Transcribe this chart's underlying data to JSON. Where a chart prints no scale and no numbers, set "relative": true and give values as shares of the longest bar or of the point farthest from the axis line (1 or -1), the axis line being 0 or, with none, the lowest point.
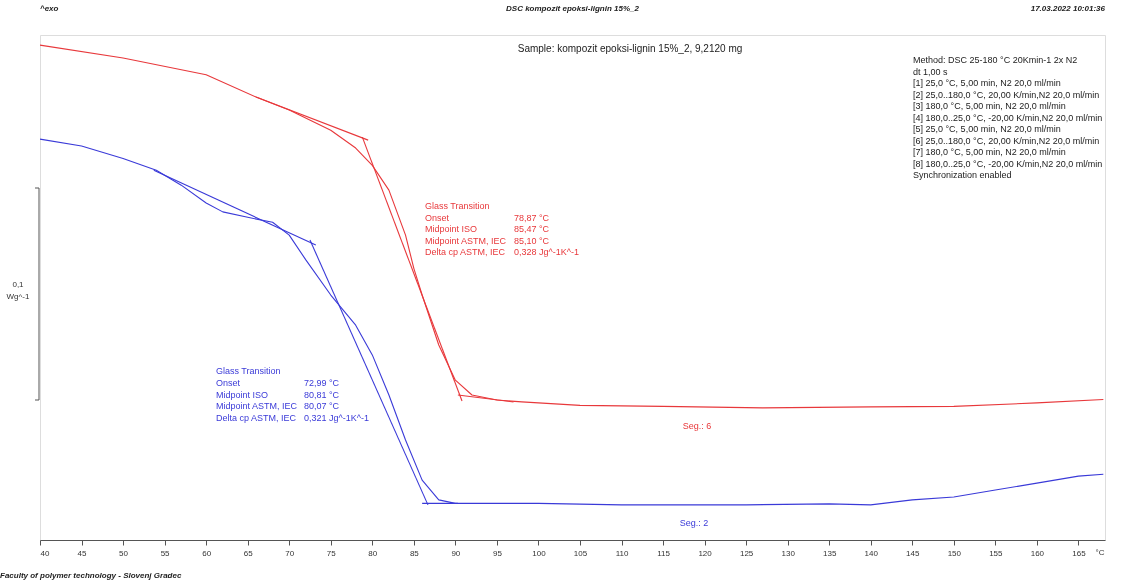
{
  "chart_data": {
    "type": "line",
    "title": "DSC kompozit epoksi-lignin 15%_2",
    "ylabel": "0,1 Wg^-1",
    "xlabel": "°C",
    "relative": true,
    "grid": false,
    "line_style": "solid",
    "marker": "none",
    "xlim": [
      40,
      168.2
    ],
    "xticks": [
      40,
      45,
      50,
      55,
      60,
      65,
      70,
      75,
      80,
      85,
      90,
      95,
      100,
      105,
      110,
      115,
      120,
      125,
      130,
      135,
      140,
      145,
      150,
      155,
      160,
      165
    ],
    "series": [
      {
        "color": "#e8383b",
        "x": [
          40,
          50,
          60,
          66,
          70,
          75,
          78,
          80,
          82,
          84,
          85,
          86,
          88,
          90,
          92,
          95,
          98,
          105,
          115,
          127,
          140,
          150,
          160,
          168
        ],
        "values": [
          1.0,
          0.974,
          0.94,
          0.895,
          0.869,
          0.828,
          0.792,
          0.757,
          0.707,
          0.616,
          0.549,
          0.495,
          0.394,
          0.323,
          0.293,
          0.283,
          0.279,
          0.272,
          0.27,
          0.267,
          0.269,
          0.27,
          0.277,
          0.284
        ]
      },
      {
        "color": "#e8383b",
        "x": [
          66,
          79.5
        ],
        "values": [
          0.895,
          0.808
        ]
      },
      {
        "color": "#e8383b",
        "x": [
          78.8,
          90.8
        ],
        "values": [
          0.814,
          0.281
        ]
      },
      {
        "color": "#e8383b",
        "x": [
          90.3,
          97
        ],
        "values": [
          0.293,
          0.279
        ]
      },
      {
        "color": "#3a3ad8",
        "x": [
          40,
          45,
          50,
          54,
          57,
          60,
          62,
          65,
          68,
          70,
          72,
          75,
          78,
          80,
          82,
          84,
          86,
          88,
          90,
          95,
          100,
          110,
          125,
          135,
          140,
          145,
          150,
          155,
          160,
          165,
          168
        ],
        "values": [
          0.81,
          0.796,
          0.771,
          0.747,
          0.717,
          0.681,
          0.663,
          0.652,
          0.642,
          0.616,
          0.566,
          0.495,
          0.434,
          0.374,
          0.293,
          0.202,
          0.121,
          0.081,
          0.074,
          0.074,
          0.074,
          0.071,
          0.071,
          0.073,
          0.071,
          0.081,
          0.087,
          0.101,
          0.115,
          0.129,
          0.133
        ]
      },
      {
        "color": "#3a3ad8",
        "x": [
          53.7,
          73.2
        ],
        "values": [
          0.747,
          0.596
        ]
      },
      {
        "color": "#3a3ad8",
        "x": [
          72.5,
          86.7
        ],
        "values": [
          0.606,
          0.071
        ]
      },
      {
        "color": "#3a3ad8",
        "x": [
          86,
          90.3
        ],
        "values": [
          0.074,
          0.074
        ]
      }
    ],
    "annotations": [
      "^exo",
      "17.03.2022 10:01:36",
      "Faculty of polymer technology - Slovenj Gradec",
      "Sample: kompozit epoksi-lignin 15%_2, 9,2120 mg",
      "Method: DSC 25-180 °C 20Kmin-1 2x N2",
      "dt 1,00 s",
      "[1] 25,0 °C, 5,00 min,  N2 20,0 ml/min",
      "[2] 25,0..180,0 °C, 20,00 K/min,N2 20,0 ml/min",
      "[3] 180,0 °C, 5,00 min, N2 20,0 ml/min",
      "[4] 180,0..25,0 °C, -20,00 K/min,N2 20,0 ml/min",
      "[5] 25,0 °C, 5,00 min,  N2 20,0 ml/min",
      "[6] 25,0..180,0 °C, 20,00 K/min,N2 20,0 ml/min",
      "[7] 180,0 °C, 5,00 min, N2 20,0 ml/min",
      "[8] 180,0..25,0 °C, -20,00 K/min,N2 20,0 ml/min",
      "Synchronization enabled",
      "Glass Transition",
      "Onset",
      "Midpoint ISO",
      "Midpoint ASTM, IEC",
      "Delta cp ASTM, IEC",
      "78,87 °C",
      "85,47 °C",
      "85,10 °C",
      "0,328 Jg^-1K^-1",
      "Glass Transition",
      "Onset",
      "Midpoint ISO",
      "Midpoint ASTM, IEC",
      "Delta cp ASTM, IEC",
      "72,99 °C",
      "80,81 °C",
      "80,07 °C",
      "0,321 Jg^-1K^-1",
      "Seg.: 6",
      "Seg.: 2"
    ]
  }
}
